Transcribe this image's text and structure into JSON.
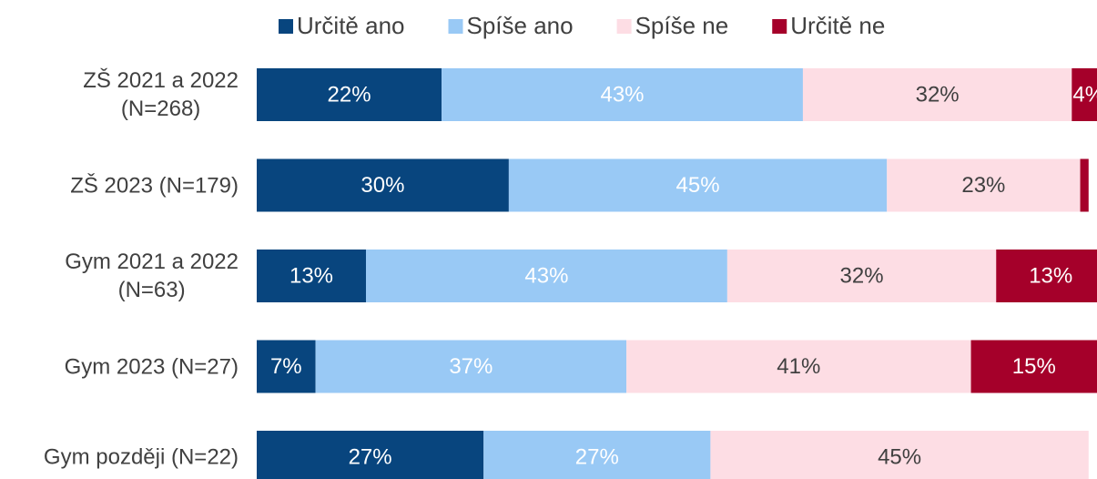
{
  "chart_data": {
    "type": "stacked-bar-horizontal",
    "categories": [
      "ZŠ 2021 a 2022\n(N=268)",
      "ZŠ 2023 (N=179)",
      "Gym 2021 a 2022\n(N=63)",
      "Gym 2023 (N=27)",
      "Gym později (N=22)"
    ],
    "xlim": [
      0,
      100
    ],
    "series": [
      {
        "name": "Určitě ano",
        "color": "#08457e",
        "label_color": "#ffffff",
        "values": [
          22,
          30,
          13,
          7,
          27
        ],
        "value_labels": [
          "22%",
          "30%",
          "13%",
          "7%",
          "27%"
        ]
      },
      {
        "name": "Spíše ano",
        "color": "#99c9f5",
        "label_color": "#ffffff",
        "values": [
          43,
          45,
          43,
          37,
          27
        ],
        "value_labels": [
          "43%",
          "45%",
          "43%",
          "37%",
          "27%"
        ]
      },
      {
        "name": "Spíše ne",
        "color": "#fddde4",
        "label_color": "#404040",
        "values": [
          32,
          23,
          32,
          41,
          45
        ],
        "value_labels": [
          "32%",
          "23%",
          "32%",
          "41%",
          "45%"
        ]
      },
      {
        "name": "Určitě ne",
        "color": "#a5002a",
        "label_color": "#ffffff",
        "values": [
          4,
          1,
          13,
          15,
          null
        ],
        "value_labels": [
          "4%",
          null,
          "13%",
          "15%",
          null
        ]
      }
    ]
  }
}
